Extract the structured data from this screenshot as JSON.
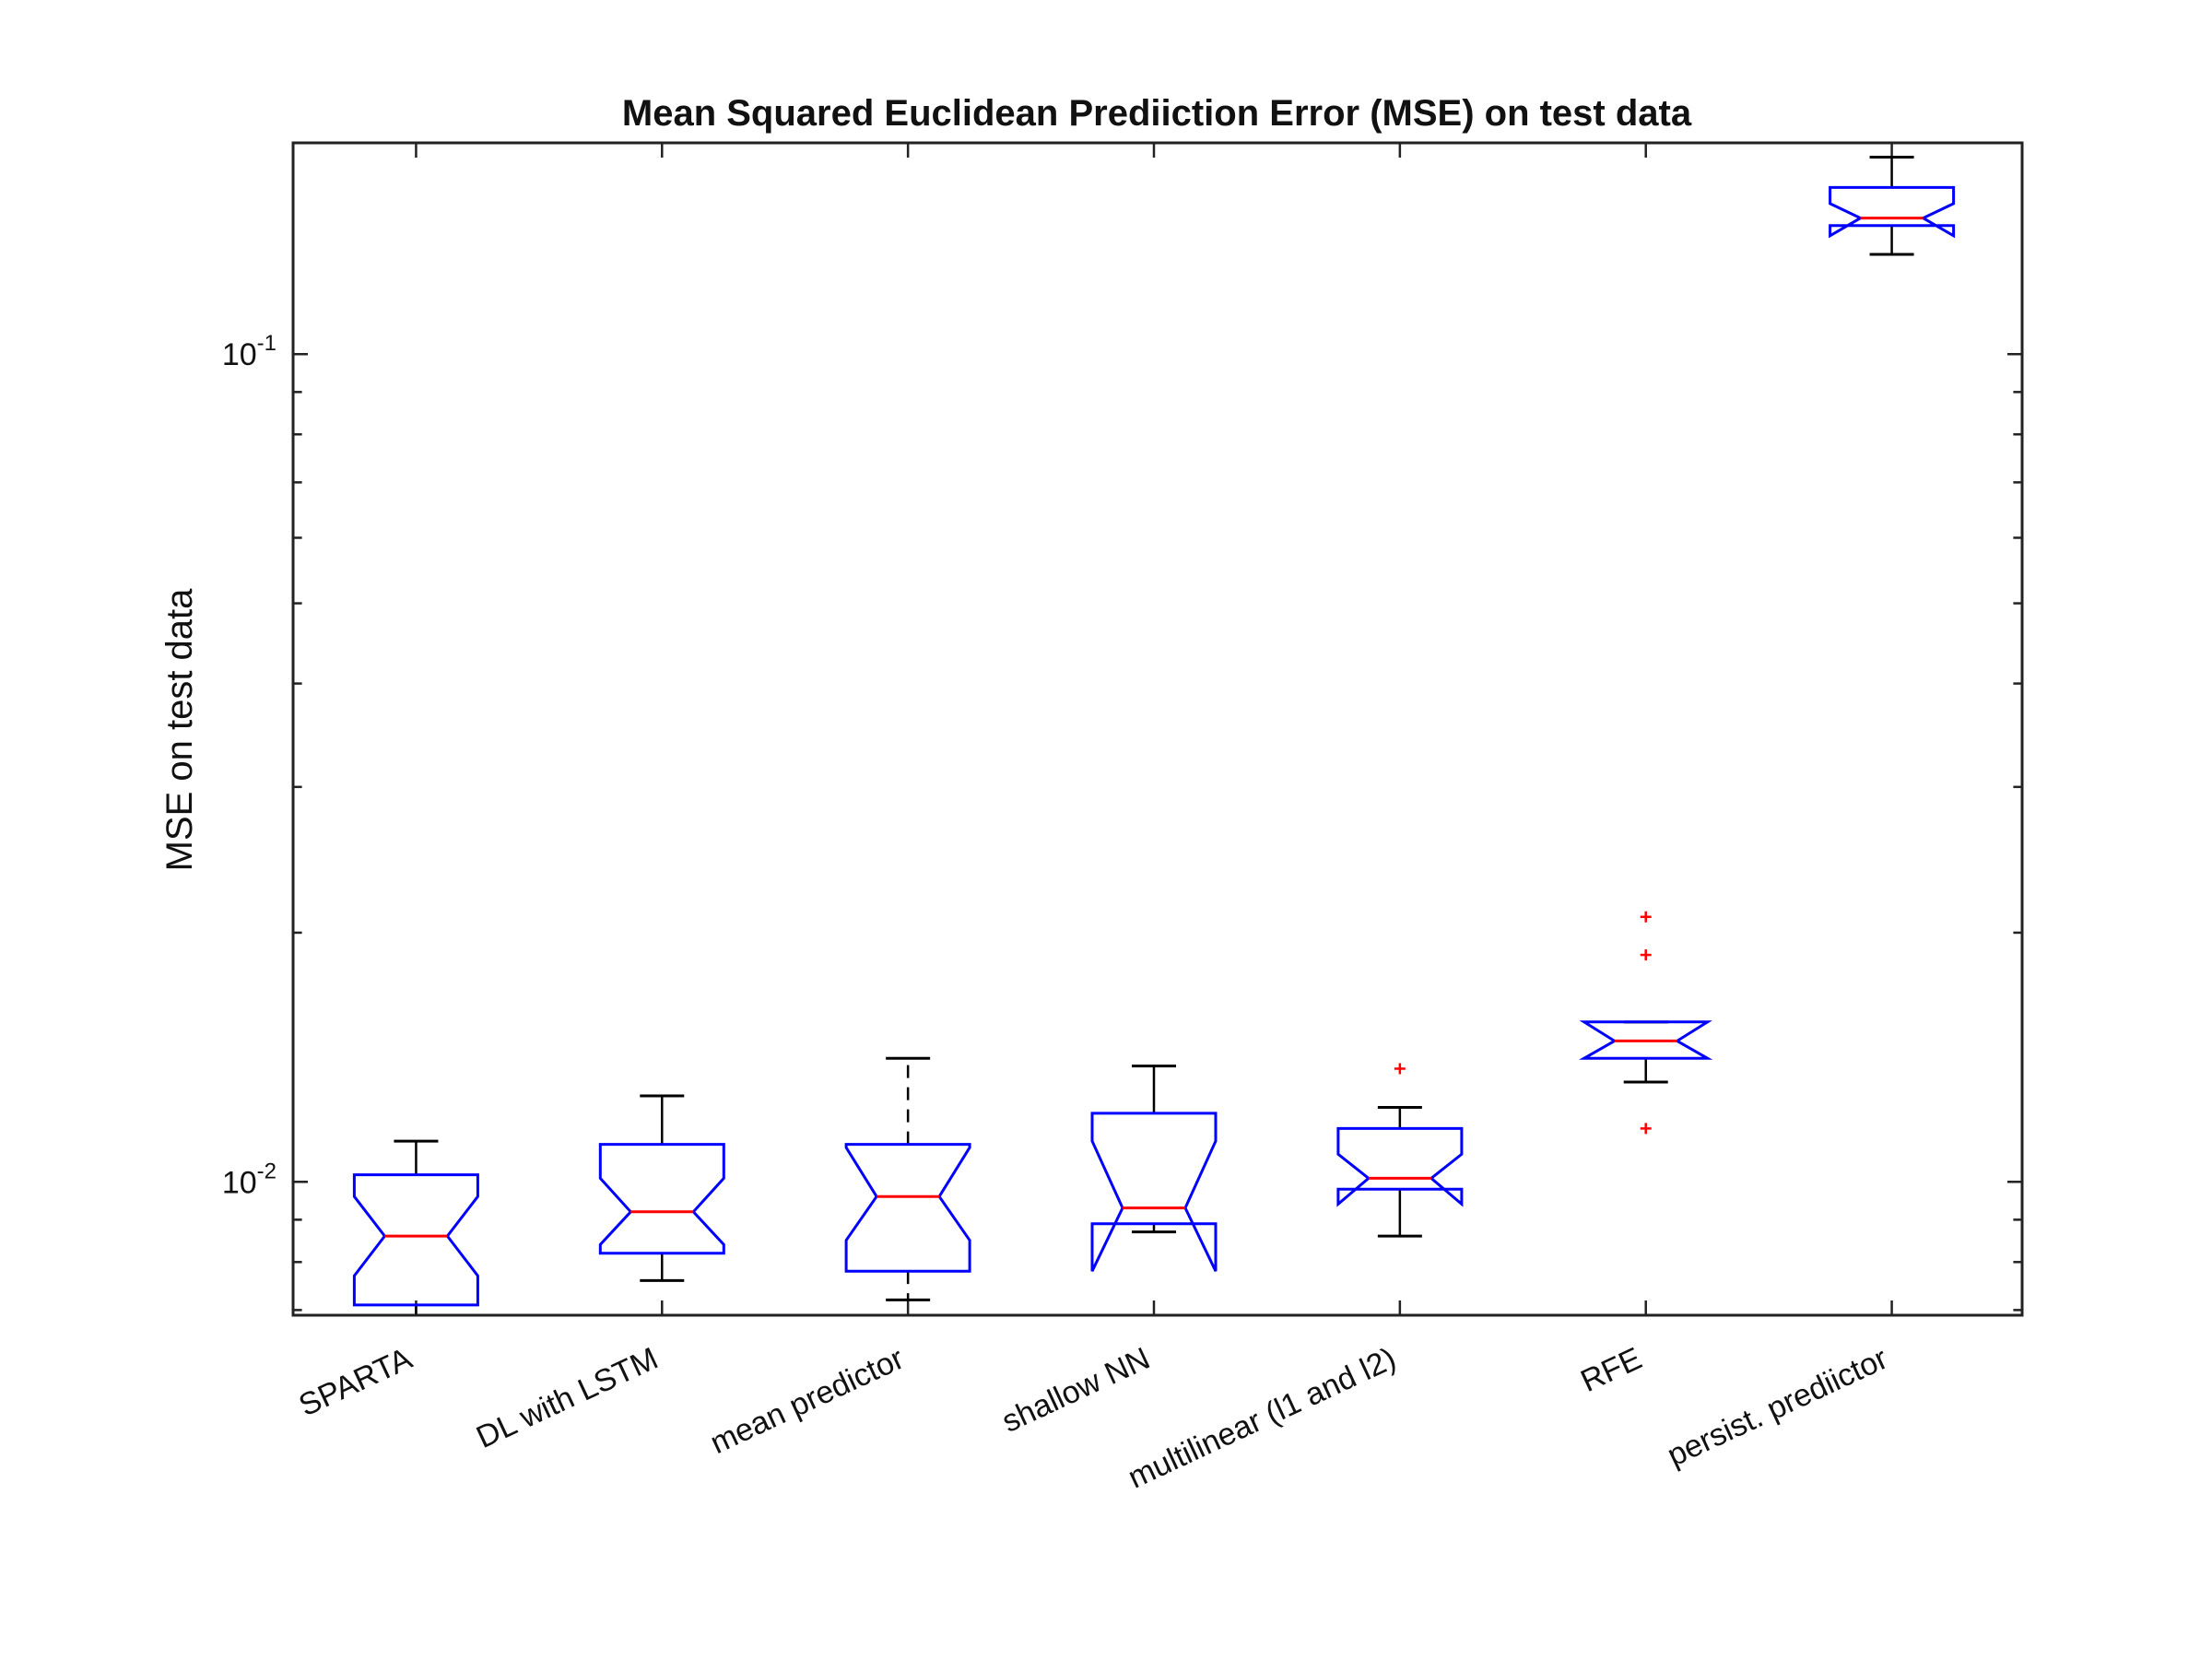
{
  "chart_data": {
    "type": "boxplot",
    "title": "Mean Squared Euclidean Prediiction Error (MSE) on test data",
    "ylabel": "MSE on test data",
    "xlabel": "",
    "yscale": "log",
    "ylim": [
      0.0069,
      0.18
    ],
    "ytick_labels": [
      {
        "value": 0.01,
        "base": "10",
        "exp": "-2"
      },
      {
        "value": 0.1,
        "base": "10",
        "exp": "-1"
      }
    ],
    "grid": false,
    "notched": true,
    "colors": {
      "box": "#0000ff",
      "median": "#ff0000",
      "whisker": "#000000",
      "outlier": "#ff0000"
    },
    "categories": [
      "SPARTA",
      "DL with LSTM",
      "mean predictor",
      "shallow NN",
      "multilinear (l1 and l2)",
      "RFE",
      "persist. prediictor"
    ],
    "boxes": [
      {
        "label": "SPARTA",
        "whisker_low": 0.0069,
        "q1": 0.0071,
        "notch_low": 0.0077,
        "median": 0.0086,
        "notch_high": 0.0096,
        "q3": 0.0102,
        "whisker_high": 0.0112,
        "whisker_style": "solid",
        "outliers": []
      },
      {
        "label": "DL with LSTM",
        "whisker_low": 0.0076,
        "q1": 0.0082,
        "notch_low": 0.0084,
        "median": 0.0092,
        "notch_high": 0.0101,
        "q3": 0.0111,
        "whisker_high": 0.0127,
        "whisker_style": "solid",
        "outliers": []
      },
      {
        "label": "mean predictor",
        "whisker_low": 0.0072,
        "q1": 0.0078,
        "notch_low": 0.0085,
        "median": 0.0096,
        "notch_high": 0.011,
        "q3": 0.0111,
        "whisker_high": 0.0141,
        "whisker_style": "dashed",
        "outliers": []
      },
      {
        "label": "shallow NN",
        "whisker_low": 0.0087,
        "q1": 0.0089,
        "notch_low": 0.0078,
        "median": 0.0093,
        "notch_high": 0.0112,
        "q3": 0.0121,
        "whisker_high": 0.0138,
        "whisker_style": "solid",
        "outliers": []
      },
      {
        "label": "multilinear (l1 and l2)",
        "whisker_low": 0.0086,
        "q1": 0.0098,
        "notch_low": 0.0094,
        "median": 0.0101,
        "notch_high": 0.0108,
        "q3": 0.0116,
        "whisker_high": 0.0123,
        "whisker_style": "solid",
        "outliers": [
          0.0137
        ]
      },
      {
        "label": "RFE",
        "whisker_low": 0.0132,
        "q1": 0.0141,
        "notch_low": 0.0141,
        "median": 0.0148,
        "notch_high": 0.0156,
        "q3": 0.0156,
        "whisker_high": 0.0156,
        "whisker_style": "solid",
        "outliers": [
          0.0116,
          0.0188,
          0.0209
        ]
      },
      {
        "label": "persist. prediictor",
        "whisker_low": 0.132,
        "q1": 0.143,
        "notch_low": 0.139,
        "median": 0.146,
        "notch_high": 0.152,
        "q3": 0.159,
        "whisker_high": 0.173,
        "whisker_style": "solid",
        "outliers": []
      }
    ]
  }
}
